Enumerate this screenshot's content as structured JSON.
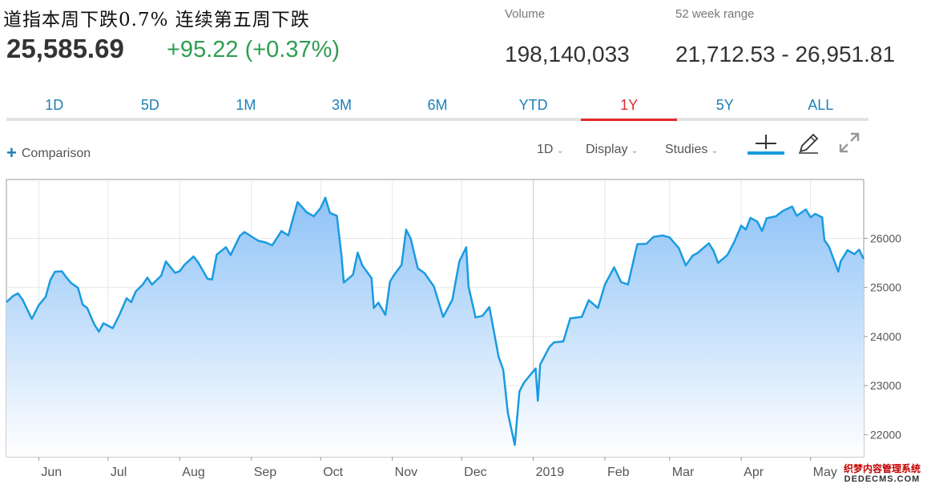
{
  "header": {
    "headline": "道指本周下跌0.7% 连续第五周下跌",
    "price": "25,585.69",
    "change": "+95.22 (+0.37%)",
    "volume_label": "Volume",
    "volume_value": "198,140,033",
    "range_label": "52 week range",
    "range_value": "21,712.53 - 26,951.81"
  },
  "tabs": [
    {
      "label": "1D"
    },
    {
      "label": "5D"
    },
    {
      "label": "1M"
    },
    {
      "label": "3M"
    },
    {
      "label": "6M"
    },
    {
      "label": "YTD"
    },
    {
      "label": "1Y"
    },
    {
      "label": "5Y"
    },
    {
      "label": "ALL"
    }
  ],
  "active_tab": "1Y",
  "toolbar": {
    "comparison": "Comparison",
    "interval": "1D",
    "display": "Display",
    "studies": "Studies",
    "icons": [
      "crosshair-icon",
      "pencil-icon",
      "expand-icon"
    ]
  },
  "colors": {
    "line": "#1a9be0",
    "fill_top": "#8fc3f7",
    "fill_bottom": "#ffffff",
    "positive": "#2e9e4f",
    "tab_text": "#1e7fb8",
    "active_tab": "#e52b2b"
  },
  "chart_data": {
    "type": "area",
    "y_ticks": [
      22000,
      23000,
      24000,
      25000,
      26000
    ],
    "ylim": [
      21550,
      27200
    ],
    "x_labels": [
      "Jun",
      "Jul",
      "Aug",
      "Sep",
      "Oct",
      "Nov",
      "Dec",
      "2019",
      "Feb",
      "Mar",
      "Apr",
      "May"
    ],
    "x_label_dates": [
      "2018-06-01",
      "2018-07-01",
      "2018-08-01",
      "2018-09-01",
      "2018-10-01",
      "2018-11-01",
      "2018-12-01",
      "2019-01-01",
      "2019-02-01",
      "2019-03-01",
      "2019-04-01",
      "2019-05-01"
    ],
    "grid": true,
    "series": [
      {
        "points": [
          [
            "2018-05-18",
            24700
          ],
          [
            "2018-05-21",
            24830
          ],
          [
            "2018-05-23",
            24880
          ],
          [
            "2018-05-25",
            24750
          ],
          [
            "2018-05-29",
            24360
          ],
          [
            "2018-06-01",
            24640
          ],
          [
            "2018-06-04",
            24810
          ],
          [
            "2018-06-06",
            25150
          ],
          [
            "2018-06-08",
            25320
          ],
          [
            "2018-06-11",
            25330
          ],
          [
            "2018-06-13",
            25200
          ],
          [
            "2018-06-15",
            25090
          ],
          [
            "2018-06-18",
            24990
          ],
          [
            "2018-06-20",
            24650
          ],
          [
            "2018-06-22",
            24580
          ],
          [
            "2018-06-25",
            24250
          ],
          [
            "2018-06-27",
            24100
          ],
          [
            "2018-06-29",
            24270
          ],
          [
            "2018-07-03",
            24170
          ],
          [
            "2018-07-06",
            24450
          ],
          [
            "2018-07-09",
            24780
          ],
          [
            "2018-07-11",
            24700
          ],
          [
            "2018-07-13",
            24920
          ],
          [
            "2018-07-16",
            25060
          ],
          [
            "2018-07-18",
            25200
          ],
          [
            "2018-07-20",
            25060
          ],
          [
            "2018-07-24",
            25240
          ],
          [
            "2018-07-26",
            25530
          ],
          [
            "2018-07-30",
            25300
          ],
          [
            "2018-08-01",
            25330
          ],
          [
            "2018-08-03",
            25460
          ],
          [
            "2018-08-07",
            25630
          ],
          [
            "2018-08-09",
            25510
          ],
          [
            "2018-08-13",
            25180
          ],
          [
            "2018-08-15",
            25160
          ],
          [
            "2018-08-17",
            25670
          ],
          [
            "2018-08-21",
            25820
          ],
          [
            "2018-08-23",
            25660
          ],
          [
            "2018-08-27",
            26050
          ],
          [
            "2018-08-29",
            26130
          ],
          [
            "2018-09-04",
            25950
          ],
          [
            "2018-09-07",
            25920
          ],
          [
            "2018-09-10",
            25860
          ],
          [
            "2018-09-12",
            26000
          ],
          [
            "2018-09-14",
            26150
          ],
          [
            "2018-09-17",
            26060
          ],
          [
            "2018-09-19",
            26400
          ],
          [
            "2018-09-21",
            26740
          ],
          [
            "2018-09-25",
            26530
          ],
          [
            "2018-09-28",
            26450
          ],
          [
            "2018-10-01",
            26620
          ],
          [
            "2018-10-03",
            26830
          ],
          [
            "2018-10-05",
            26520
          ],
          [
            "2018-10-08",
            26460
          ],
          [
            "2018-10-10",
            25650
          ],
          [
            "2018-10-11",
            25100
          ],
          [
            "2018-10-15",
            25260
          ],
          [
            "2018-10-17",
            25710
          ],
          [
            "2018-10-19",
            25450
          ],
          [
            "2018-10-23",
            25190
          ],
          [
            "2018-10-24",
            24580
          ],
          [
            "2018-10-26",
            24690
          ],
          [
            "2018-10-29",
            24440
          ],
          [
            "2018-10-31",
            25120
          ],
          [
            "2018-11-02",
            25270
          ],
          [
            "2018-11-05",
            25460
          ],
          [
            "2018-11-07",
            26180
          ],
          [
            "2018-11-09",
            25990
          ],
          [
            "2018-11-12",
            25390
          ],
          [
            "2018-11-15",
            25290
          ],
          [
            "2018-11-19",
            25020
          ],
          [
            "2018-11-23",
            24400
          ],
          [
            "2018-11-27",
            24750
          ],
          [
            "2018-11-30",
            25530
          ],
          [
            "2018-12-03",
            25820
          ],
          [
            "2018-12-04",
            25020
          ],
          [
            "2018-12-07",
            24390
          ],
          [
            "2018-12-10",
            24420
          ],
          [
            "2018-12-13",
            24600
          ],
          [
            "2018-12-17",
            23590
          ],
          [
            "2018-12-19",
            23320
          ],
          [
            "2018-12-21",
            22450
          ],
          [
            "2018-12-24",
            21790
          ],
          [
            "2018-12-26",
            22880
          ],
          [
            "2018-12-28",
            23060
          ],
          [
            "2019-01-02",
            23350
          ],
          [
            "2019-01-03",
            22690
          ],
          [
            "2019-01-04",
            23430
          ],
          [
            "2019-01-08",
            23790
          ],
          [
            "2019-01-10",
            23880
          ],
          [
            "2019-01-14",
            23900
          ],
          [
            "2019-01-17",
            24370
          ],
          [
            "2019-01-22",
            24400
          ],
          [
            "2019-01-25",
            24740
          ],
          [
            "2019-01-29",
            24580
          ],
          [
            "2019-02-01",
            25060
          ],
          [
            "2019-02-05",
            25410
          ],
          [
            "2019-02-08",
            25110
          ],
          [
            "2019-02-11",
            25060
          ],
          [
            "2019-02-15",
            25880
          ],
          [
            "2019-02-19",
            25890
          ],
          [
            "2019-02-22",
            26030
          ],
          [
            "2019-02-26",
            26060
          ],
          [
            "2019-03-01",
            26020
          ],
          [
            "2019-03-05",
            25800
          ],
          [
            "2019-03-08",
            25450
          ],
          [
            "2019-03-11",
            25650
          ],
          [
            "2019-03-13",
            25700
          ],
          [
            "2019-03-18",
            25900
          ],
          [
            "2019-03-20",
            25750
          ],
          [
            "2019-03-22",
            25500
          ],
          [
            "2019-03-26",
            25660
          ],
          [
            "2019-03-29",
            25930
          ],
          [
            "2019-04-01",
            26260
          ],
          [
            "2019-04-03",
            26180
          ],
          [
            "2019-04-05",
            26420
          ],
          [
            "2019-04-08",
            26340
          ],
          [
            "2019-04-10",
            26150
          ],
          [
            "2019-04-12",
            26410
          ],
          [
            "2019-04-16",
            26450
          ],
          [
            "2019-04-19",
            26560
          ],
          [
            "2019-04-23",
            26650
          ],
          [
            "2019-04-25",
            26460
          ],
          [
            "2019-04-29",
            26590
          ],
          [
            "2019-05-01",
            26430
          ],
          [
            "2019-05-03",
            26500
          ],
          [
            "2019-05-06",
            26430
          ],
          [
            "2019-05-07",
            25960
          ],
          [
            "2019-05-09",
            25830
          ],
          [
            "2019-05-13",
            25320
          ],
          [
            "2019-05-14",
            25530
          ],
          [
            "2019-05-17",
            25760
          ],
          [
            "2019-05-20",
            25680
          ],
          [
            "2019-05-22",
            25770
          ],
          [
            "2019-05-24",
            25580
          ]
        ]
      }
    ]
  }
}
